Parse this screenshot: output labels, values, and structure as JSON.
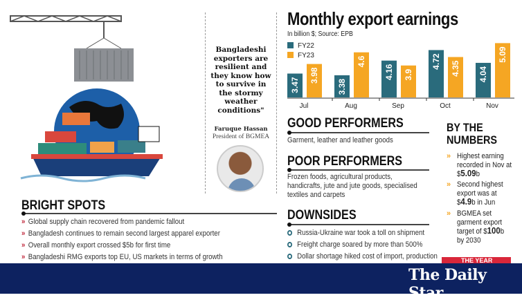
{
  "chart_data": {
    "type": "bar",
    "title": "Monthly export earnings",
    "subtitle": "In billion $; Source: EPB",
    "categories": [
      "Jul",
      "Aug",
      "Sep",
      "Oct",
      "Nov"
    ],
    "series": [
      {
        "name": "FY22",
        "values": [
          3.47,
          3.38,
          4.16,
          4.72,
          4.04
        ],
        "color": "#2a6b7c"
      },
      {
        "name": "FY23",
        "values": [
          3.98,
          4.6,
          3.9,
          4.35,
          5.09
        ],
        "color": "#f5a623"
      }
    ],
    "value_labels": {
      "FY22": [
        "3.47",
        "3.38",
        "4.16",
        "4.72",
        "4.04"
      ],
      "FY23": [
        "3.98",
        "4.6",
        "3.9",
        "4.35",
        "5.09"
      ]
    },
    "ylim": [
      2.2,
      5.1
    ],
    "legend": "top-left",
    "grid": false
  },
  "quote": {
    "text": "Bangladeshi exporters are resilient and they know how to survive in the stormy weather conditions\"",
    "name": "Faruque Hassan",
    "role": "President of BGMEA"
  },
  "good": {
    "title": "GOOD PERFORMERS",
    "text": "Garment, leather and leather goods"
  },
  "poor": {
    "title": "POOR PERFORMERS",
    "lines": [
      "Frozen foods, agricultural products,",
      "handicrafts, jute and jute goods, specialised",
      "textiles and carpets"
    ]
  },
  "downsides": {
    "title": "DOWNSIDES",
    "items": [
      "Russia-Ukraine war took a toll on shipment",
      "Freight charge soared by more than 500%",
      "Dollar shortage hiked cost of import, production"
    ]
  },
  "numbers": {
    "title1": "BY THE",
    "title2": "NUMBERS",
    "items": [
      {
        "pre": [
          "Highest earning",
          "recorded in Nov at"
        ],
        "dollar": "$",
        "bold": "5.09",
        "post": "b"
      },
      {
        "pre": [
          "Second highest",
          "export was at"
        ],
        "dollar": "$",
        "bold": "4.9",
        "post": "b in Jun"
      },
      {
        "pre": [
          "BGMEA set",
          "garment export",
          "target of $"
        ],
        "dollar": "",
        "bold": "100",
        "post": "b",
        "after": "by 2030"
      }
    ]
  },
  "bright": {
    "title": "BRIGHT SPOTS",
    "items": [
      "Global supply chain recovered from pandemic fallout",
      "Bangladesh continues to remain second largest apparel exporter",
      "Overall monthly export crossed $5b for first time",
      "Bangladeshi RMG exports top EU, US markets in terms of growth"
    ]
  },
  "footer": {
    "brand": "The Daily Star",
    "badge": "THE YEAR",
    "bg": "#0d2260"
  }
}
